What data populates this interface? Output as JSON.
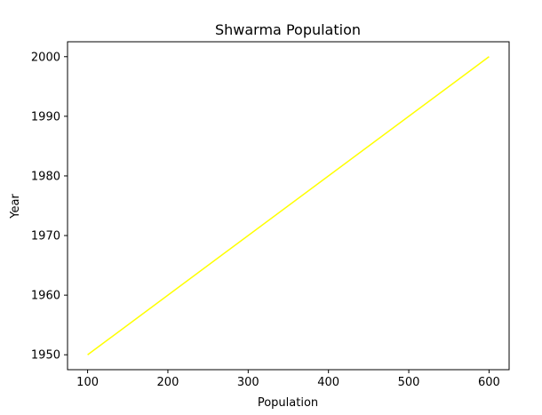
{
  "chart_data": {
    "type": "line",
    "title": "Shwarma Population",
    "xlabel": "Population",
    "ylabel": "Year",
    "x_ticks": [
      100,
      200,
      300,
      400,
      500,
      600
    ],
    "y_ticks": [
      1950,
      1960,
      1970,
      1980,
      1990,
      2000
    ],
    "xlim": [
      75,
      625
    ],
    "ylim": [
      1947.5,
      2002.5
    ],
    "grid": false,
    "series": [
      {
        "color": "#ffff00",
        "x": [
          100,
          600
        ],
        "y": [
          1950,
          2000
        ]
      }
    ]
  }
}
